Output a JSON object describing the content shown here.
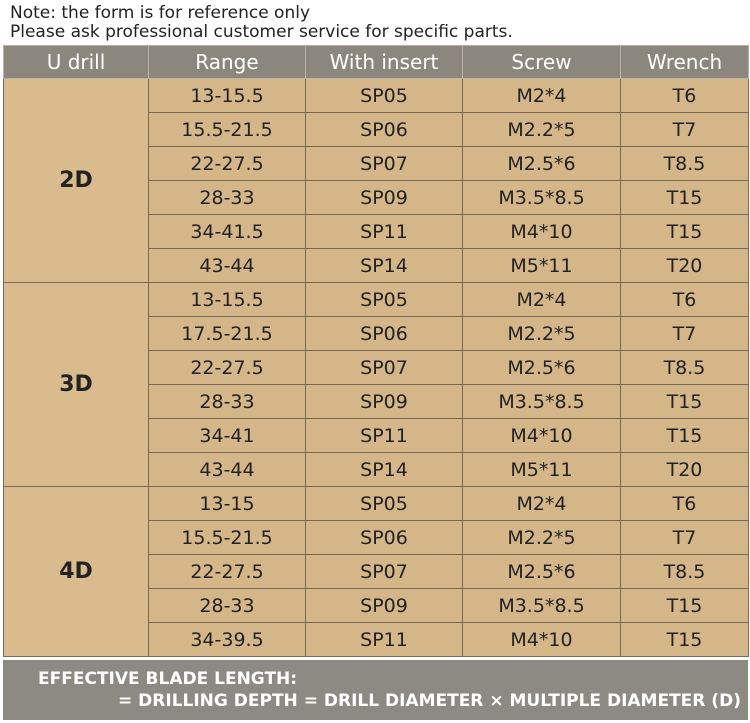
{
  "notes": [
    "Note: the form is for reference only",
    "Please ask professional customer service for specific parts."
  ],
  "table": {
    "header": [
      "U drill",
      "Range",
      "With insert",
      "Screw",
      "Wrench"
    ],
    "groups": [
      {
        "label": "2D",
        "rows": [
          [
            "13-15.5",
            "SP05",
            "M2*4",
            "T6"
          ],
          [
            "15.5-21.5",
            "SP06",
            "M2.2*5",
            "T7"
          ],
          [
            "22-27.5",
            "SP07",
            "M2.5*6",
            "T8.5"
          ],
          [
            "28-33",
            "SP09",
            "M3.5*8.5",
            "T15"
          ],
          [
            "34-41.5",
            "SP11",
            "M4*10",
            "T15"
          ],
          [
            "43-44",
            "SP14",
            "M5*11",
            "T20"
          ]
        ]
      },
      {
        "label": "3D",
        "rows": [
          [
            "13-15.5",
            "SP05",
            "M2*4",
            "T6"
          ],
          [
            "17.5-21.5",
            "SP06",
            "M2.2*5",
            "T7"
          ],
          [
            "22-27.5",
            "SP07",
            "M2.5*6",
            "T8.5"
          ],
          [
            "28-33",
            "SP09",
            "M3.5*8.5",
            "T15"
          ],
          [
            "34-41",
            "SP11",
            "M4*10",
            "T15"
          ],
          [
            "43-44",
            "SP14",
            "M5*11",
            "T20"
          ]
        ]
      },
      {
        "label": "4D",
        "rows": [
          [
            "13-15",
            "SP05",
            "M2*4",
            "T6"
          ],
          [
            "15.5-21.5",
            "SP06",
            "M2.2*5",
            "T7"
          ],
          [
            "22-27.5",
            "SP07",
            "M2.5*6",
            "T8.5"
          ],
          [
            "28-33",
            "SP09",
            "M3.5*8.5",
            "T15"
          ],
          [
            "34-39.5",
            "SP11",
            "M4*10",
            "T15"
          ]
        ]
      }
    ]
  },
  "footer": [
    "EFFECTIVE BLADE LENGTH:",
    "= DRILLING DEPTH = DRILL DIAMETER × MULTIPLE DIAMETER (D)"
  ]
}
